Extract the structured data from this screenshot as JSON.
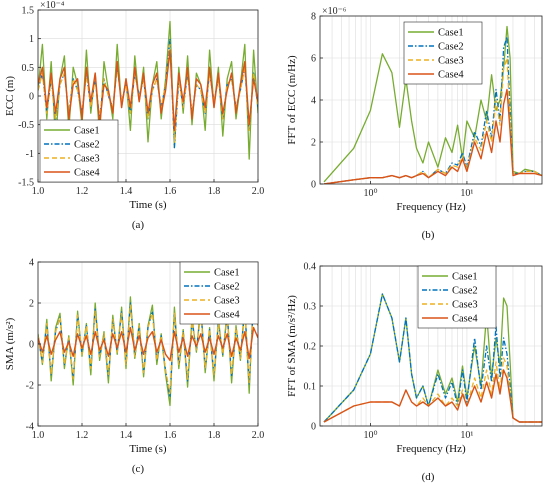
{
  "colors": {
    "Case1": "#77AC30",
    "Case2": "#0072BD",
    "Case3": "#EDB120",
    "Case4": "#D95319"
  },
  "chart_data": [
    {
      "id": "a",
      "type": "line",
      "caption": "(a)",
      "xlabel": "Time (s)",
      "ylabel": "ECC (m)",
      "xlim": [
        1.0,
        2.0
      ],
      "ylim": [
        -1.5,
        1.5
      ],
      "yexp": "×10⁻⁴",
      "xticks": [
        "1.0",
        "1.2",
        "1.4",
        "1.6",
        "1.8",
        "2.0"
      ],
      "yticks": [
        "-1.5",
        "-1",
        "-0.5",
        "0",
        "0.5",
        "1",
        "1.5"
      ],
      "legend": {
        "placement": "bottom-left",
        "entries": [
          "Case1",
          "Case2",
          "Case3",
          "Case4"
        ]
      },
      "grid": true,
      "series": [
        {
          "name": "Case1",
          "values": [
            0.1,
            0.9,
            -0.4,
            0.6,
            -0.8,
            0.3,
            0.7,
            -0.6,
            0.5,
            0.2,
            -0.5,
            0.8,
            -0.3,
            0.4,
            -0.7,
            0.6,
            0.1,
            -0.4,
            0.9,
            -0.2,
            0.3,
            -0.6,
            0.7,
            -0.1,
            0.5,
            -0.8,
            0.2,
            0.6,
            -0.4,
            0.3,
            1.3,
            -0.9,
            0.5,
            -0.3,
            0.7,
            -0.5,
            0.4,
            0.2,
            -0.6,
            0.8,
            -0.2,
            0.5,
            -0.7,
            0.3,
            0.6,
            -0.4,
            0.2,
            0.9,
            -1.1,
            0.8,
            -0.3
          ]
        },
        {
          "name": "Case2",
          "values": [
            0.1,
            0.4,
            -0.3,
            0.3,
            -0.4,
            0.2,
            0.4,
            -0.3,
            0.3,
            0.1,
            -0.3,
            0.4,
            -0.2,
            0.3,
            -0.4,
            0.3,
            0.0,
            -0.2,
            0.5,
            -0.1,
            0.2,
            -0.3,
            0.4,
            0.0,
            0.3,
            -0.4,
            0.1,
            0.3,
            -0.2,
            0.2,
            1.0,
            -0.9,
            0.3,
            -0.2,
            0.4,
            -0.3,
            0.2,
            0.1,
            -0.3,
            0.4,
            -0.1,
            0.3,
            -0.4,
            0.2,
            0.3,
            -0.2,
            0.1,
            0.5,
            -0.6,
            0.4,
            -0.2
          ]
        },
        {
          "name": "Case3",
          "values": [
            0.1,
            0.4,
            -0.3,
            0.3,
            -0.4,
            0.2,
            0.4,
            -0.3,
            0.3,
            0.1,
            -0.3,
            0.4,
            -0.2,
            0.3,
            -0.4,
            0.3,
            0.0,
            -0.2,
            0.5,
            -0.1,
            0.2,
            -0.3,
            0.4,
            0.0,
            0.3,
            -0.4,
            0.1,
            0.3,
            -0.2,
            0.2,
            0.9,
            -0.8,
            0.3,
            -0.2,
            0.4,
            -0.3,
            0.2,
            0.1,
            -0.3,
            0.4,
            -0.1,
            0.3,
            -0.4,
            0.2,
            0.3,
            -0.2,
            0.1,
            0.5,
            -0.6,
            0.4,
            -0.2
          ]
        },
        {
          "name": "Case4",
          "values": [
            0.2,
            0.5,
            -0.2,
            0.4,
            -0.3,
            0.3,
            0.5,
            -0.4,
            0.2,
            0.3,
            -0.4,
            0.5,
            -0.1,
            0.4,
            -0.5,
            0.2,
            0.1,
            -0.3,
            0.6,
            -0.2,
            0.3,
            -0.2,
            0.5,
            -0.1,
            0.4,
            -0.3,
            0.2,
            0.4,
            -0.3,
            0.1,
            0.8,
            -0.6,
            0.4,
            -0.1,
            0.5,
            -0.4,
            0.3,
            0.2,
            -0.2,
            0.5,
            -0.2,
            0.4,
            -0.3,
            0.1,
            0.4,
            -0.3,
            0.2,
            0.6,
            -0.5,
            0.3,
            -0.1
          ]
        }
      ]
    },
    {
      "id": "b",
      "type": "line",
      "caption": "(b)",
      "xlabel": "Frequency (Hz)",
      "ylabel": "FFT of ECC (m/Hz)",
      "xscale": "log",
      "xlim": [
        0.3,
        60
      ],
      "ylim": [
        0,
        8
      ],
      "yexp": "×10⁻⁶",
      "xticks": [
        {
          "v": 1,
          "t": "10⁰"
        },
        {
          "v": 10,
          "t": "10¹"
        }
      ],
      "yticks": [
        "0",
        "2",
        "4",
        "6",
        "8"
      ],
      "legend": {
        "placement": "top-right",
        "entries": [
          "Case1",
          "Case2",
          "Case3",
          "Case4"
        ]
      },
      "grid": true,
      "x": [
        0.33,
        0.67,
        1.0,
        1.33,
        1.67,
        2.0,
        2.33,
        2.67,
        3.0,
        3.5,
        4.0,
        5.0,
        6.0,
        7.0,
        8.0,
        9.0,
        10.0,
        12.0,
        14.0,
        16.0,
        18.0,
        20.0,
        22.0,
        24.0,
        26.0,
        28.0,
        30.0,
        35.0,
        40.0,
        50.0,
        60.0
      ],
      "series": [
        {
          "name": "Case1",
          "values": [
            0.1,
            1.7,
            3.5,
            6.2,
            5.3,
            2.7,
            5.0,
            3.0,
            1.7,
            1.0,
            2.0,
            0.8,
            2.2,
            1.5,
            2.8,
            1.2,
            3.0,
            2.2,
            4.0,
            3.0,
            5.2,
            3.5,
            4.0,
            5.5,
            7.5,
            6.0,
            0.6,
            0.5,
            0.7,
            0.6,
            0.4
          ]
        },
        {
          "name": "Case2",
          "values": [
            0.0,
            0.2,
            0.3,
            0.3,
            0.4,
            0.3,
            0.4,
            0.3,
            0.4,
            0.6,
            0.3,
            0.7,
            0.5,
            1.0,
            0.9,
            1.5,
            0.8,
            2.5,
            1.8,
            3.5,
            2.2,
            4.5,
            3.0,
            6.5,
            7.0,
            3.5,
            0.5,
            0.5,
            0.6,
            0.6,
            0.4
          ]
        },
        {
          "name": "Case3",
          "values": [
            0.0,
            0.2,
            0.3,
            0.3,
            0.4,
            0.3,
            0.4,
            0.3,
            0.4,
            0.6,
            0.3,
            0.7,
            0.5,
            0.9,
            0.8,
            1.3,
            0.7,
            2.2,
            1.6,
            3.0,
            2.0,
            4.0,
            2.8,
            5.5,
            6.0,
            3.0,
            0.5,
            0.5,
            0.6,
            0.6,
            0.4
          ]
        },
        {
          "name": "Case4",
          "values": [
            0.0,
            0.2,
            0.3,
            0.3,
            0.4,
            0.3,
            0.4,
            0.3,
            0.4,
            0.5,
            0.3,
            0.6,
            0.4,
            0.8,
            0.6,
            1.2,
            0.6,
            2.0,
            1.2,
            2.5,
            1.5,
            3.0,
            2.0,
            3.8,
            4.5,
            2.5,
            0.4,
            0.5,
            0.5,
            0.5,
            0.4
          ]
        }
      ]
    },
    {
      "id": "c",
      "type": "line",
      "caption": "(c)",
      "xlabel": "Time (s)",
      "ylabel": "SMA (m/s²)",
      "xlim": [
        1.0,
        2.0
      ],
      "ylim": [
        -4,
        4
      ],
      "xticks": [
        "1.0",
        "1.2",
        "1.4",
        "1.6",
        "1.8",
        "2.0"
      ],
      "yticks": [
        "-4",
        "-2",
        "0",
        "2",
        "4"
      ],
      "legend": {
        "placement": "top-right",
        "entries": [
          "Case1",
          "Case2",
          "Case3",
          "Case4"
        ]
      },
      "grid": true,
      "series": [
        {
          "name": "Case1",
          "values": [
            0.5,
            -1.0,
            1.2,
            -1.8,
            0.8,
            1.5,
            -1.2,
            0.4,
            -2.0,
            1.6,
            -0.6,
            1.0,
            -1.5,
            2.0,
            -0.8,
            0.6,
            -1.9,
            1.4,
            -0.5,
            1.8,
            -1.2,
            2.3,
            -0.7,
            1.0,
            -1.6,
            0.9,
            1.9,
            -1.0,
            0.5,
            -1.5,
            -3.0,
            1.8,
            -1.2,
            0.7,
            -2.1,
            1.3,
            -0.4,
            1.9,
            -1.4,
            0.8,
            -1.8,
            1.2,
            -0.6,
            1.6,
            -1.9,
            0.9,
            -0.8,
            2.0,
            -2.4,
            2.6,
            1.0
          ]
        },
        {
          "name": "Case2",
          "values": [
            0.4,
            -0.9,
            1.0,
            -1.5,
            0.6,
            1.3,
            -1.0,
            0.3,
            -1.7,
            1.4,
            -0.5,
            0.9,
            -1.2,
            1.7,
            -0.6,
            0.5,
            -1.6,
            1.2,
            -0.4,
            1.6,
            -1.0,
            2.0,
            -0.6,
            0.9,
            -1.4,
            0.8,
            1.6,
            -0.8,
            0.4,
            -1.3,
            -2.6,
            1.5,
            -1.0,
            0.6,
            -1.8,
            1.1,
            -0.3,
            1.6,
            -1.2,
            0.7,
            -1.5,
            1.0,
            -0.5,
            1.4,
            -1.6,
            0.8,
            -0.7,
            1.7,
            -2.0,
            2.1,
            0.9
          ]
        },
        {
          "name": "Case3",
          "values": [
            0.4,
            -0.9,
            1.0,
            -1.5,
            0.6,
            1.3,
            -1.0,
            0.3,
            -1.7,
            1.4,
            -0.5,
            0.9,
            -1.2,
            1.6,
            -0.6,
            0.5,
            -1.5,
            1.2,
            -0.4,
            1.5,
            -1.0,
            1.9,
            -0.6,
            0.9,
            -1.4,
            0.8,
            1.5,
            -0.8,
            0.4,
            -1.3,
            -2.4,
            1.5,
            -1.0,
            0.6,
            -1.7,
            1.1,
            -0.3,
            1.5,
            -1.2,
            0.7,
            -1.5,
            1.0,
            -0.5,
            1.3,
            -1.5,
            0.8,
            -0.7,
            1.6,
            -1.9,
            2.0,
            0.9
          ]
        },
        {
          "name": "Case4",
          "values": [
            0.3,
            -0.4,
            0.4,
            -0.5,
            0.2,
            0.6,
            -0.4,
            0.1,
            -0.6,
            0.5,
            -0.2,
            0.4,
            -0.5,
            0.6,
            -0.3,
            0.2,
            -0.6,
            0.5,
            -0.2,
            0.6,
            -0.4,
            0.8,
            -0.3,
            0.4,
            -0.5,
            0.3,
            0.6,
            -0.4,
            0.2,
            -0.5,
            -0.8,
            0.6,
            -0.4,
            0.3,
            -0.6,
            0.4,
            -0.1,
            0.5,
            -0.4,
            0.3,
            -0.5,
            0.4,
            -0.2,
            0.5,
            -0.6,
            0.3,
            -0.3,
            0.6,
            -0.7,
            0.8,
            0.3
          ]
        }
      ]
    },
    {
      "id": "d",
      "type": "line",
      "caption": "(d)",
      "xlabel": "Frequency (Hz)",
      "ylabel": "FFT of SMA (m/s²/Hz)",
      "xscale": "log",
      "xlim": [
        0.3,
        60
      ],
      "ylim": [
        0,
        0.4
      ],
      "xticks": [
        {
          "v": 1,
          "t": "10⁰"
        },
        {
          "v": 10,
          "t": "10¹"
        }
      ],
      "yticks": [
        "0",
        "0.1",
        "0.2",
        "0.3",
        "0.4"
      ],
      "legend": {
        "placement": "top-right",
        "entries": [
          "Case1",
          "Case2",
          "Case3",
          "Case4"
        ]
      },
      "grid": true,
      "x": [
        0.33,
        0.67,
        1.0,
        1.33,
        1.67,
        2.0,
        2.33,
        2.67,
        3.0,
        3.5,
        4.0,
        5.0,
        6.0,
        7.0,
        8.0,
        9.0,
        10.0,
        12.0,
        14.0,
        16.0,
        18.0,
        20.0,
        22.0,
        24.0,
        26.0,
        28.0,
        30.0,
        35.0,
        40.0,
        50.0,
        60.0
      ],
      "series": [
        {
          "name": "Case1",
          "values": [
            0.01,
            0.09,
            0.18,
            0.33,
            0.27,
            0.16,
            0.27,
            0.13,
            0.07,
            0.1,
            0.05,
            0.14,
            0.08,
            0.12,
            0.06,
            0.15,
            0.07,
            0.2,
            0.1,
            0.28,
            0.12,
            0.22,
            0.15,
            0.32,
            0.3,
            0.16,
            0.02,
            0.01,
            0.01,
            0.01,
            0.01
          ]
        },
        {
          "name": "Case2",
          "values": [
            0.01,
            0.09,
            0.18,
            0.33,
            0.27,
            0.16,
            0.27,
            0.13,
            0.07,
            0.1,
            0.05,
            0.13,
            0.07,
            0.11,
            0.05,
            0.14,
            0.06,
            0.22,
            0.09,
            0.2,
            0.11,
            0.25,
            0.12,
            0.22,
            0.18,
            0.1,
            0.02,
            0.01,
            0.01,
            0.01,
            0.01
          ]
        },
        {
          "name": "Case3",
          "values": [
            0.01,
            0.05,
            0.06,
            0.06,
            0.06,
            0.05,
            0.09,
            0.06,
            0.05,
            0.07,
            0.05,
            0.08,
            0.05,
            0.07,
            0.05,
            0.09,
            0.05,
            0.12,
            0.07,
            0.14,
            0.08,
            0.16,
            0.09,
            0.17,
            0.15,
            0.08,
            0.02,
            0.01,
            0.01,
            0.01,
            0.01
          ]
        },
        {
          "name": "Case4",
          "values": [
            0.01,
            0.05,
            0.06,
            0.06,
            0.06,
            0.05,
            0.09,
            0.06,
            0.05,
            0.06,
            0.05,
            0.07,
            0.05,
            0.06,
            0.04,
            0.08,
            0.05,
            0.1,
            0.06,
            0.11,
            0.07,
            0.13,
            0.08,
            0.14,
            0.12,
            0.07,
            0.02,
            0.01,
            0.01,
            0.01,
            0.01
          ]
        }
      ]
    }
  ]
}
